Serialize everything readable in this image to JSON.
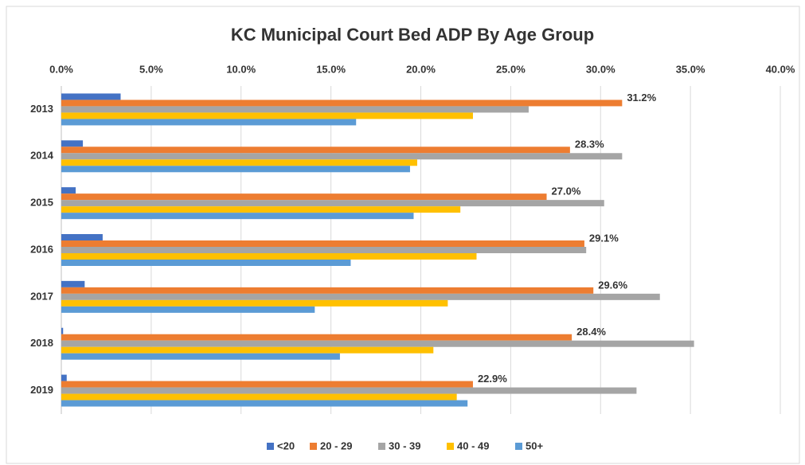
{
  "chart_data": {
    "type": "barh",
    "title": "KC Municipal Court Bed ADP By Age Group",
    "categories": [
      "2013",
      "2014",
      "2015",
      "2016",
      "2017",
      "2018",
      "2019"
    ],
    "series": [
      {
        "name": "<20",
        "color": "#4472c4",
        "values": [
          3.3,
          1.2,
          0.8,
          2.3,
          1.3,
          0.1,
          0.3
        ]
      },
      {
        "name": "20 - 29",
        "color": "#ed7d31",
        "values": [
          31.2,
          28.3,
          27.0,
          29.1,
          29.6,
          28.4,
          22.9
        ],
        "value_labels": [
          "31.2%",
          "28.3%",
          "27.0%",
          "29.1%",
          "29.6%",
          "28.4%",
          "22.9%"
        ]
      },
      {
        "name": "30 - 39",
        "color": "#a5a5a5",
        "values": [
          26.0,
          31.2,
          30.2,
          29.2,
          33.3,
          35.2,
          32.0
        ]
      },
      {
        "name": "40 - 49",
        "color": "#ffc000",
        "values": [
          22.9,
          19.8,
          22.2,
          23.1,
          21.5,
          20.7,
          22.0
        ]
      },
      {
        "name": "50+",
        "color": "#5b9bd5",
        "values": [
          16.4,
          19.4,
          19.6,
          16.1,
          14.1,
          15.5,
          22.6
        ]
      }
    ],
    "xlim": [
      0,
      40
    ],
    "xticks": [
      {
        "value": 0,
        "label": "0.0%"
      },
      {
        "value": 5,
        "label": "5.0%"
      },
      {
        "value": 10,
        "label": "10.0%"
      },
      {
        "value": 15,
        "label": "15.0%"
      },
      {
        "value": 20,
        "label": "20.0%"
      },
      {
        "value": 25,
        "label": "25.0%"
      },
      {
        "value": 30,
        "label": "30.0%"
      },
      {
        "value": 35,
        "label": "35.0%"
      },
      {
        "value": 40,
        "label": "40.0%"
      }
    ],
    "grid": true,
    "legend": "bottom"
  }
}
